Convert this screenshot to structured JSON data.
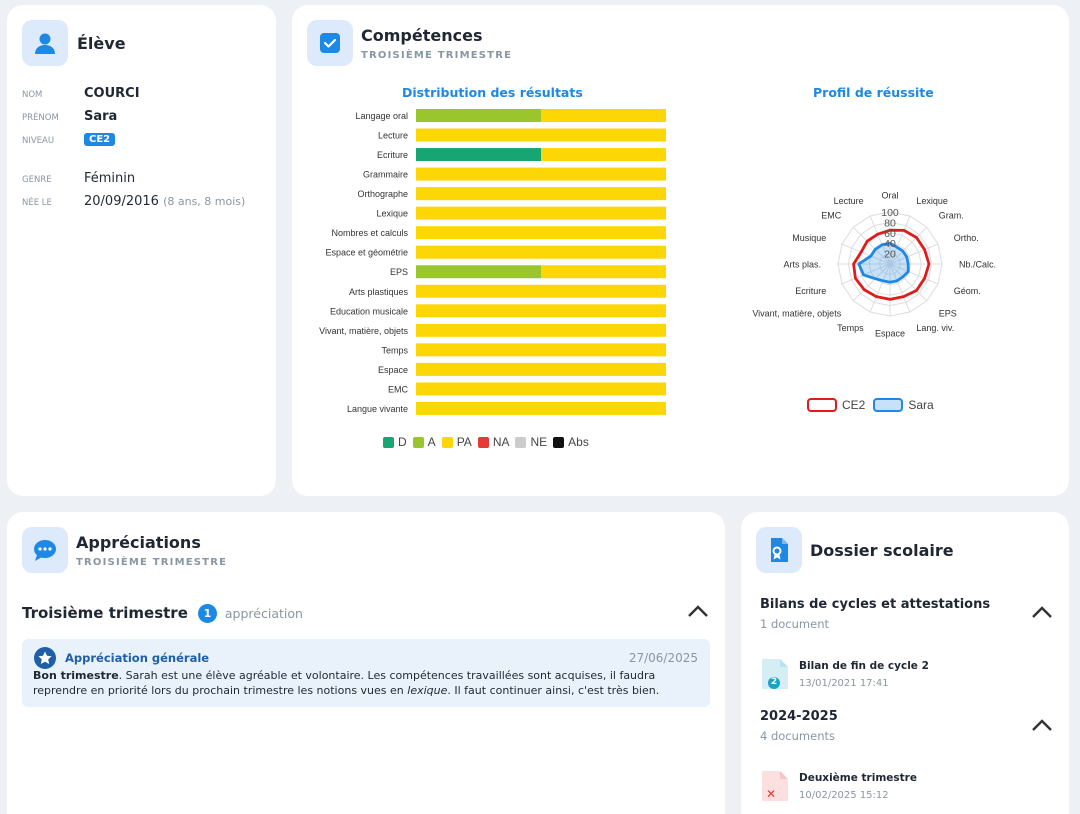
{
  "eleve": {
    "title": "Élève",
    "fields": [
      {
        "label": "NOM",
        "value": "COURCI"
      },
      {
        "label": "PRÉNOM",
        "value": "Sara"
      },
      {
        "label": "NIVEAU",
        "value": "CE2"
      },
      {
        "label": "GENRE",
        "value": "Féminin"
      },
      {
        "label": "NÉE LE",
        "value": "20/09/2016",
        "extra": "(8 ans, 8 mois)"
      }
    ]
  },
  "competences": {
    "title": "Compétences",
    "subtitle": "TROISIÈME TRIMESTRE"
  },
  "chart_data": [
    {
      "type": "bar",
      "title": "Distribution des résultats",
      "categories": [
        "Langage oral",
        "Lecture",
        "Ecriture",
        "Grammaire",
        "Orthographe",
        "Lexique",
        "Nombres et calculs",
        "Espace et géométrie",
        "EPS",
        "Arts plastiques",
        "Education musicale",
        "Vivant, matière, objets",
        "Temps",
        "Espace",
        "EMC",
        "Langue vivante"
      ],
      "stacked": true,
      "series": [
        {
          "name": "D",
          "color": "#17a673",
          "values": [
            0,
            0,
            50,
            0,
            0,
            0,
            0,
            0,
            0,
            0,
            0,
            0,
            0,
            0,
            0,
            0
          ]
        },
        {
          "name": "A",
          "color": "#9ac52d",
          "values": [
            50,
            0,
            0,
            0,
            0,
            0,
            0,
            0,
            50,
            0,
            0,
            0,
            0,
            0,
            0,
            0
          ]
        },
        {
          "name": "PA",
          "color": "#fcd705",
          "values": [
            50,
            100,
            50,
            100,
            100,
            100,
            100,
            100,
            50,
            100,
            100,
            100,
            100,
            100,
            100,
            100
          ]
        },
        {
          "name": "NA",
          "color": "#e53935",
          "values": [
            0,
            0,
            0,
            0,
            0,
            0,
            0,
            0,
            0,
            0,
            0,
            0,
            0,
            0,
            0,
            0
          ]
        },
        {
          "name": "NE",
          "color": "#cccccc",
          "values": [
            0,
            0,
            0,
            0,
            0,
            0,
            0,
            0,
            0,
            0,
            0,
            0,
            0,
            0,
            0,
            0
          ]
        },
        {
          "name": "Abs",
          "color": "#111111",
          "values": [
            0,
            0,
            0,
            0,
            0,
            0,
            0,
            0,
            0,
            0,
            0,
            0,
            0,
            0,
            0,
            0
          ]
        }
      ],
      "xlim": [
        0,
        100
      ],
      "legend": "bottom"
    },
    {
      "type": "radar",
      "title": "Profil de réussite",
      "axes": [
        "Oral",
        "Lexique",
        "Gram.",
        "Ortho.",
        "Nb./Calc.",
        "Géom.",
        "EPS",
        "Lang. viv.",
        "Espace",
        "Temps",
        "Vivant, matière, objets",
        "Ecriture",
        "Arts plas.",
        "Musique",
        "EMC",
        "Lecture"
      ],
      "ticks": [
        "20",
        "40",
        "60",
        "80",
        "100"
      ],
      "rmax": 100,
      "series": [
        {
          "name": "CE2",
          "color": "#e01b1b",
          "fill": "rgba(255,255,255,0)",
          "values": [
            65,
            70,
            72,
            72,
            75,
            72,
            72,
            68,
            68,
            68,
            70,
            72,
            70,
            60,
            62,
            62
          ]
        },
        {
          "name": "Sara",
          "color": "#1e88e5",
          "fill": "rgba(30,136,229,0.25)",
          "values": [
            40,
            35,
            35,
            35,
            35,
            38,
            35,
            35,
            35,
            35,
            40,
            55,
            60,
            40,
            40,
            40
          ]
        }
      ],
      "legend": "bottom"
    }
  ],
  "appreciations": {
    "title": "Appréciations",
    "subtitle": "TROISIÈME TRIMESTRE",
    "section_title": "Troisième trimestre",
    "count": "1",
    "count_label": "appréciation",
    "item": {
      "title": "Appréciation générale",
      "date": "27/06/2025",
      "bold": "Bon trimestre",
      "text1": ". Sarah est une élève agréable et volontaire. Les compétences travaillées sont acquises, il faudra reprendre en priorité lors du prochain trimestre les notions vues en ",
      "italic": "lexique",
      "text2": ". Il faut continuer ainsi, c'est très bien."
    }
  },
  "dossier": {
    "title": "Dossier scolaire",
    "sections": [
      {
        "title": "Bilans de cycles et attestations",
        "subtitle": "1 document",
        "doc": {
          "name": "Bilan de fin de cycle 2",
          "date": "13/01/2021 17:41",
          "badge": "2",
          "color": "#1ba3c6"
        }
      },
      {
        "title": "2024-2025",
        "subtitle": "4 documents",
        "doc": {
          "name": "Deuxième trimestre",
          "date": "10/02/2025 15:12",
          "badge": "✕",
          "color": "#e53935"
        }
      }
    ]
  }
}
